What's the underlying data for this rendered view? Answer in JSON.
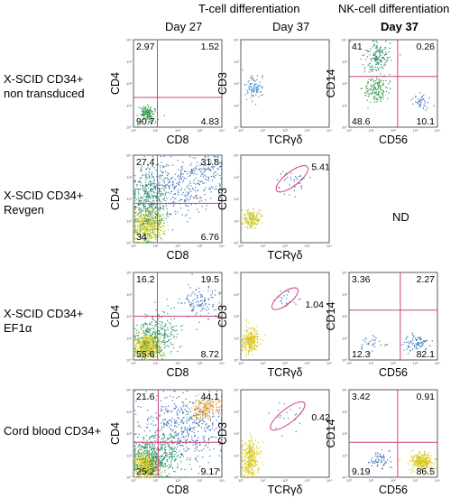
{
  "headers": {
    "tcell": "T-cell differentiation",
    "nkcell": "NK-cell differentiation",
    "day27": "Day 27",
    "day37_t": "Day 37",
    "day37_nk": "Day 37"
  },
  "rows": [
    {
      "label_line1": "X-SCID CD34+",
      "label_line2": "non transduced"
    },
    {
      "label_line1": "X-SCID CD34+",
      "label_line2": "Revgen"
    },
    {
      "label_line1": "X-SCID CD34+",
      "label_line2": "EF1α"
    },
    {
      "label_line1": "Cord blood CD34+",
      "label_line2": ""
    }
  ],
  "nd_text": "ND",
  "tick_labels": [
    "10⁰",
    "10¹",
    "10²",
    "10³",
    "10⁴"
  ],
  "chart_data": [
    {
      "type": "scatter",
      "row": 0,
      "col": 0,
      "xlabel": "CD8",
      "ylabel": "CD4",
      "quadrants": {
        "ul": "2.97",
        "ur": "1.52",
        "ll": "90.7",
        "lr": "4.83"
      }
    },
    {
      "type": "scatter",
      "row": 0,
      "col": 1,
      "xlabel": "TCRγδ",
      "ylabel": "CD3"
    },
    {
      "type": "scatter",
      "row": 0,
      "col": 2,
      "xlabel": "CD56",
      "ylabel": "CD14",
      "quadrants": {
        "ul": "41",
        "ur": "0.26",
        "ll": "48.6",
        "lr": "10.1"
      }
    },
    {
      "type": "scatter",
      "row": 1,
      "col": 0,
      "xlabel": "CD8",
      "ylabel": "CD4",
      "quadrants": {
        "ul": "27.4",
        "ur": "31.8",
        "ll": "34",
        "lr": "6.76"
      }
    },
    {
      "type": "scatter",
      "row": 1,
      "col": 1,
      "xlabel": "TCRγδ",
      "ylabel": "CD3",
      "gate": "5.41"
    },
    {
      "type": "scatter",
      "row": 2,
      "col": 0,
      "xlabel": "CD8",
      "ylabel": "CD4",
      "quadrants": {
        "ul": "16.2",
        "ur": "19.5",
        "ll": "55.6",
        "lr": "8.72"
      }
    },
    {
      "type": "scatter",
      "row": 2,
      "col": 1,
      "xlabel": "TCRγδ",
      "ylabel": "CD3",
      "gate": "1.04"
    },
    {
      "type": "scatter",
      "row": 2,
      "col": 2,
      "xlabel": "CD56",
      "ylabel": "CD14",
      "quadrants": {
        "ul": "3.36",
        "ur": "2.27",
        "ll": "12.3",
        "lr": "82.1"
      }
    },
    {
      "type": "scatter",
      "row": 3,
      "col": 0,
      "xlabel": "CD8",
      "ylabel": "CD4",
      "quadrants": {
        "ul": "21.6",
        "ur": "44.1",
        "ll": "25.2",
        "lr": "9.17"
      }
    },
    {
      "type": "scatter",
      "row": 3,
      "col": 1,
      "xlabel": "TCRγδ",
      "ylabel": "CD3",
      "gate": "0.42"
    },
    {
      "type": "scatter",
      "row": 3,
      "col": 2,
      "xlabel": "CD56",
      "ylabel": "CD14",
      "quadrants": {
        "ul": "3.42",
        "ur": "0.91",
        "ll": "9.19",
        "lr": "86.5"
      }
    }
  ]
}
